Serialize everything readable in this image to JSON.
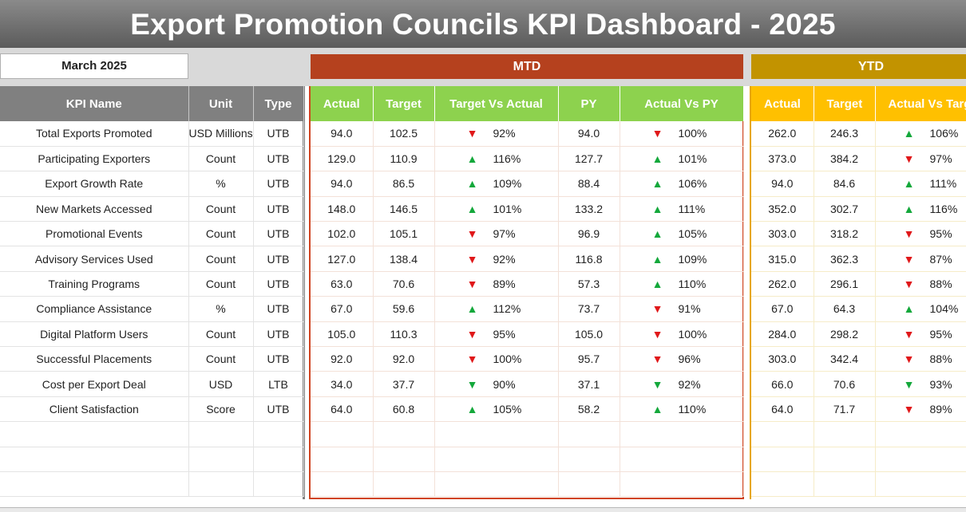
{
  "title": "Export Promotion Councils KPI Dashboard - 2025",
  "selected_month": "March 2025",
  "groups": {
    "mtd": "MTD",
    "ytd": "YTD"
  },
  "kpi_headers": [
    "KPI Name",
    "Unit",
    "Type"
  ],
  "mtd_headers": [
    "Actual",
    "Target",
    "Target Vs Actual",
    "PY",
    "Actual Vs PY"
  ],
  "ytd_headers": [
    "Actual",
    "Target",
    "Actual Vs Target"
  ],
  "colors": {
    "up": "#14a83b",
    "down": "#e0181a",
    "mtd": "#b5411e",
    "mtd_header": "#8dd24e",
    "ytd": "#c29300",
    "ytd_header": "#ffc000"
  },
  "rows": [
    {
      "name": "Total Exports Promoted",
      "unit": "USD Millions",
      "type": "UTB",
      "mtd_actual": "94.0",
      "mtd_target": "102.5",
      "mtd_tva_dir": "down",
      "mtd_tva": "92%",
      "mtd_py": "94.0",
      "mtd_avp_dir": "down",
      "mtd_avp": "100%",
      "ytd_actual": "262.0",
      "ytd_target": "246.3",
      "ytd_avt_dir": "up",
      "ytd_avt": "106%"
    },
    {
      "name": "Participating Exporters",
      "unit": "Count",
      "type": "UTB",
      "mtd_actual": "129.0",
      "mtd_target": "110.9",
      "mtd_tva_dir": "up",
      "mtd_tva": "116%",
      "mtd_py": "127.7",
      "mtd_avp_dir": "up",
      "mtd_avp": "101%",
      "ytd_actual": "373.0",
      "ytd_target": "384.2",
      "ytd_avt_dir": "down",
      "ytd_avt": "97%"
    },
    {
      "name": "Export Growth Rate",
      "unit": "%",
      "type": "UTB",
      "mtd_actual": "94.0",
      "mtd_target": "86.5",
      "mtd_tva_dir": "up",
      "mtd_tva": "109%",
      "mtd_py": "88.4",
      "mtd_avp_dir": "up",
      "mtd_avp": "106%",
      "ytd_actual": "94.0",
      "ytd_target": "84.6",
      "ytd_avt_dir": "up",
      "ytd_avt": "111%"
    },
    {
      "name": "New Markets Accessed",
      "unit": "Count",
      "type": "UTB",
      "mtd_actual": "148.0",
      "mtd_target": "146.5",
      "mtd_tva_dir": "up",
      "mtd_tva": "101%",
      "mtd_py": "133.2",
      "mtd_avp_dir": "up",
      "mtd_avp": "111%",
      "ytd_actual": "352.0",
      "ytd_target": "302.7",
      "ytd_avt_dir": "up",
      "ytd_avt": "116%"
    },
    {
      "name": "Promotional Events",
      "unit": "Count",
      "type": "UTB",
      "mtd_actual": "102.0",
      "mtd_target": "105.1",
      "mtd_tva_dir": "down",
      "mtd_tva": "97%",
      "mtd_py": "96.9",
      "mtd_avp_dir": "up",
      "mtd_avp": "105%",
      "ytd_actual": "303.0",
      "ytd_target": "318.2",
      "ytd_avt_dir": "down",
      "ytd_avt": "95%"
    },
    {
      "name": "Advisory Services Used",
      "unit": "Count",
      "type": "UTB",
      "mtd_actual": "127.0",
      "mtd_target": "138.4",
      "mtd_tva_dir": "down",
      "mtd_tva": "92%",
      "mtd_py": "116.8",
      "mtd_avp_dir": "up",
      "mtd_avp": "109%",
      "ytd_actual": "315.0",
      "ytd_target": "362.3",
      "ytd_avt_dir": "down",
      "ytd_avt": "87%"
    },
    {
      "name": "Training Programs",
      "unit": "Count",
      "type": "UTB",
      "mtd_actual": "63.0",
      "mtd_target": "70.6",
      "mtd_tva_dir": "down",
      "mtd_tva": "89%",
      "mtd_py": "57.3",
      "mtd_avp_dir": "up",
      "mtd_avp": "110%",
      "ytd_actual": "262.0",
      "ytd_target": "296.1",
      "ytd_avt_dir": "down",
      "ytd_avt": "88%"
    },
    {
      "name": "Compliance Assistance",
      "unit": "%",
      "type": "UTB",
      "mtd_actual": "67.0",
      "mtd_target": "59.6",
      "mtd_tva_dir": "up",
      "mtd_tva": "112%",
      "mtd_py": "73.7",
      "mtd_avp_dir": "down",
      "mtd_avp": "91%",
      "ytd_actual": "67.0",
      "ytd_target": "64.3",
      "ytd_avt_dir": "up",
      "ytd_avt": "104%"
    },
    {
      "name": "Digital Platform Users",
      "unit": "Count",
      "type": "UTB",
      "mtd_actual": "105.0",
      "mtd_target": "110.3",
      "mtd_tva_dir": "down",
      "mtd_tva": "95%",
      "mtd_py": "105.0",
      "mtd_avp_dir": "down",
      "mtd_avp": "100%",
      "ytd_actual": "284.0",
      "ytd_target": "298.2",
      "ytd_avt_dir": "down",
      "ytd_avt": "95%"
    },
    {
      "name": "Successful Placements",
      "unit": "Count",
      "type": "UTB",
      "mtd_actual": "92.0",
      "mtd_target": "92.0",
      "mtd_tva_dir": "down",
      "mtd_tva": "100%",
      "mtd_py": "95.7",
      "mtd_avp_dir": "down",
      "mtd_avp": "96%",
      "ytd_actual": "303.0",
      "ytd_target": "342.4",
      "ytd_avt_dir": "down",
      "ytd_avt": "88%"
    },
    {
      "name": "Cost per Export Deal",
      "unit": "USD",
      "type": "LTB",
      "mtd_actual": "34.0",
      "mtd_target": "37.7",
      "mtd_tva_dir": "down-green",
      "mtd_tva": "90%",
      "mtd_py": "37.1",
      "mtd_avp_dir": "down-green",
      "mtd_avp": "92%",
      "ytd_actual": "66.0",
      "ytd_target": "70.6",
      "ytd_avt_dir": "down-green",
      "ytd_avt": "93%"
    },
    {
      "name": "Client Satisfaction",
      "unit": "Score",
      "type": "UTB",
      "mtd_actual": "64.0",
      "mtd_target": "60.8",
      "mtd_tva_dir": "up",
      "mtd_tva": "105%",
      "mtd_py": "58.2",
      "mtd_avp_dir": "up",
      "mtd_avp": "110%",
      "ytd_actual": "64.0",
      "ytd_target": "71.7",
      "ytd_avt_dir": "down",
      "ytd_avt": "89%"
    }
  ]
}
